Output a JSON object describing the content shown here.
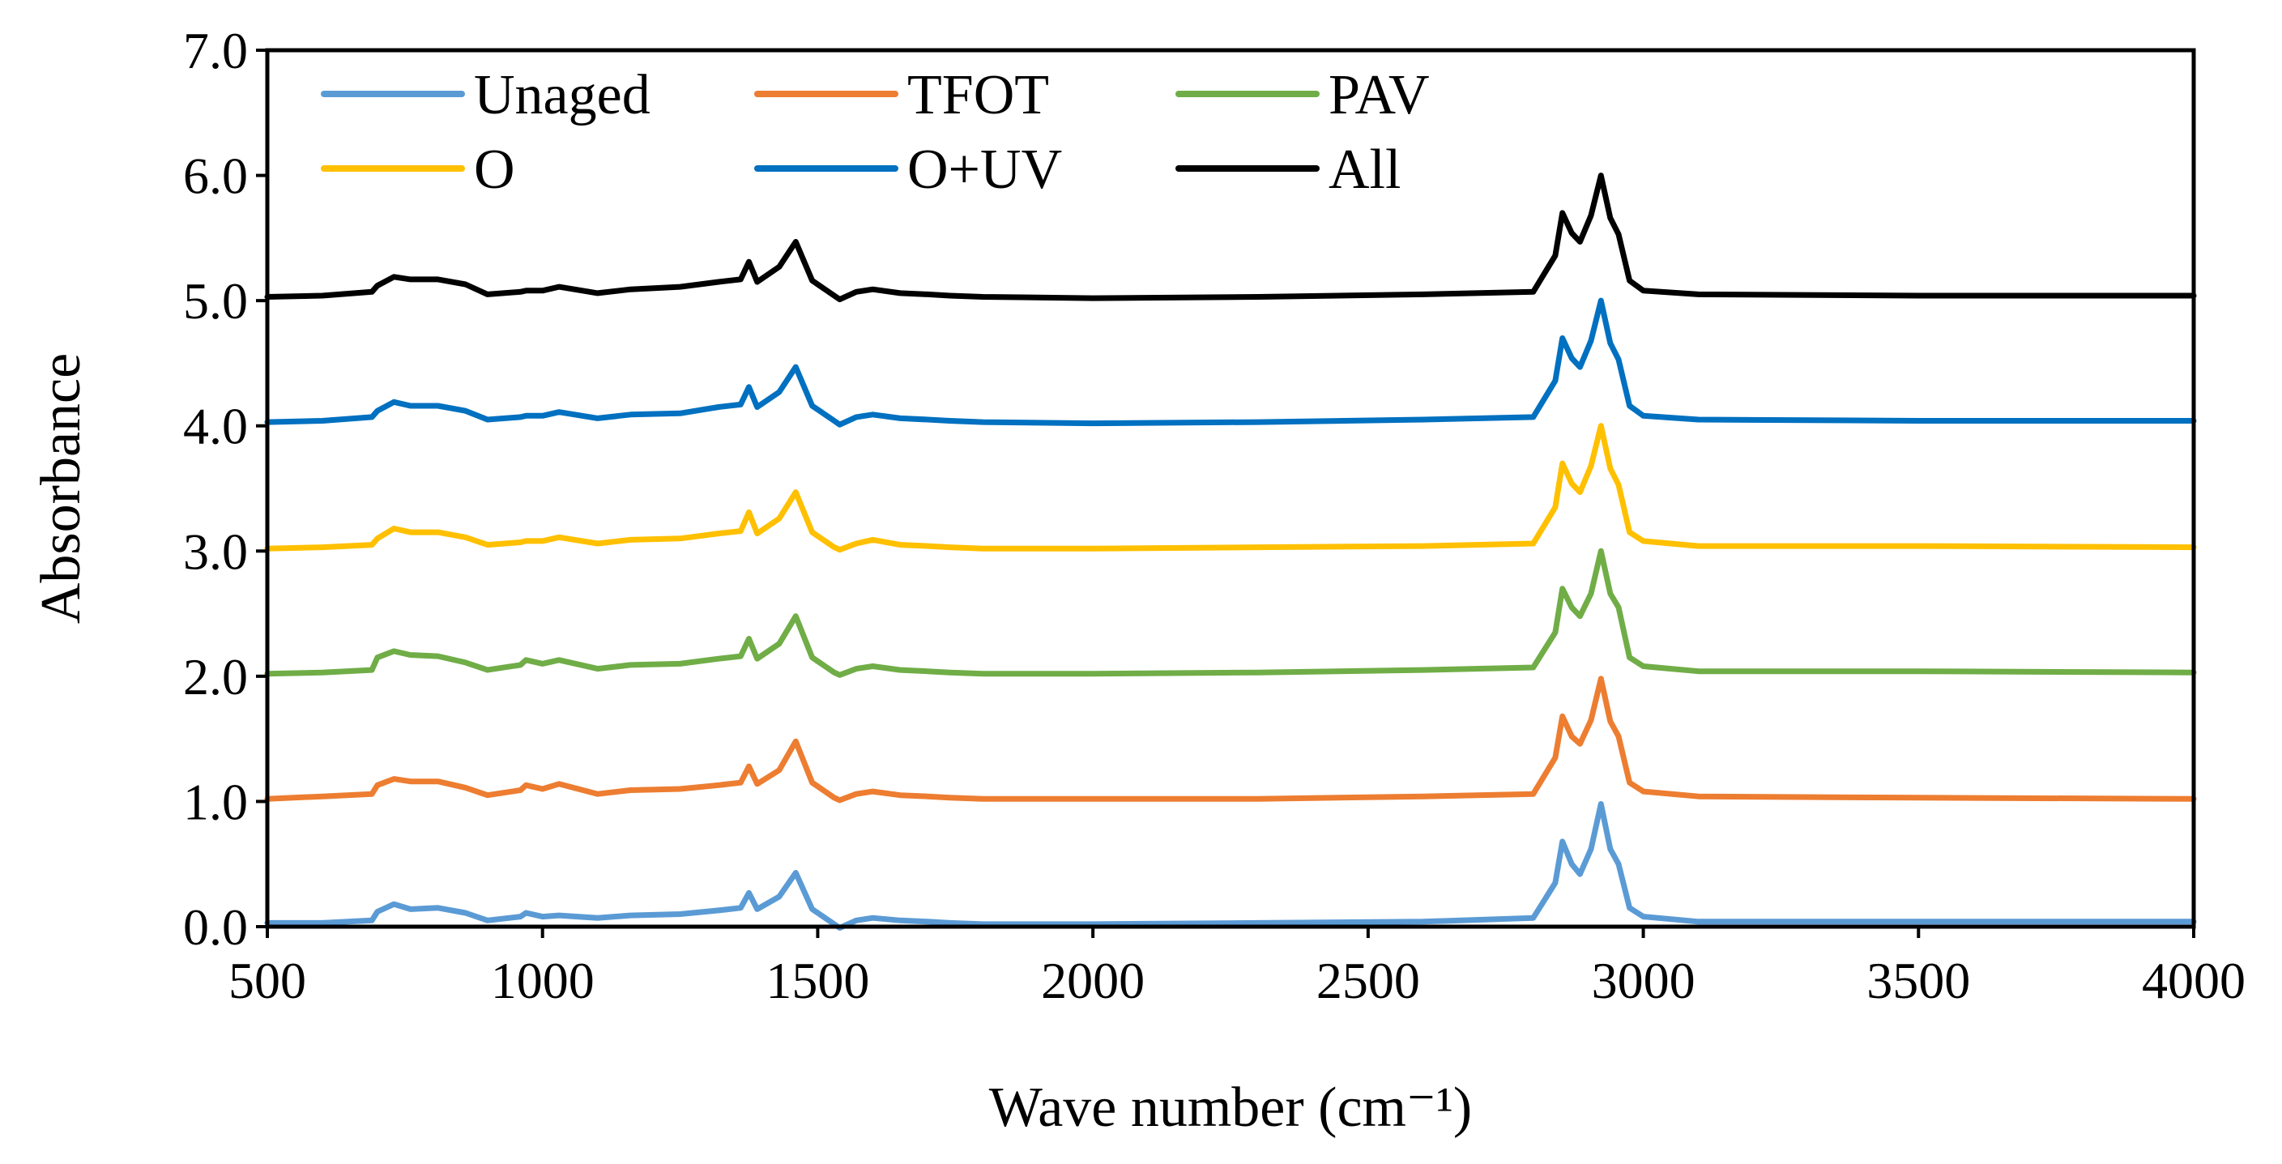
{
  "chart_data": {
    "type": "line",
    "title": "",
    "xlabel": "Wave number (cm⁻¹)",
    "ylabel": "Absorbance",
    "xlim": [
      500,
      4000
    ],
    "ylim": [
      0,
      7
    ],
    "x_ticks": [
      "500",
      "1000",
      "1500",
      "2000",
      "2500",
      "3000",
      "3500",
      "4000"
    ],
    "y_ticks": [
      "0.0",
      "1.0",
      "2.0",
      "3.0",
      "4.0",
      "5.0",
      "6.0",
      "7.0"
    ],
    "grid": false,
    "legend_position": "top, inside plot, 3 columns",
    "x": [
      500,
      600,
      690,
      700,
      730,
      760,
      810,
      860,
      900,
      960,
      970,
      1000,
      1030,
      1100,
      1160,
      1250,
      1320,
      1360,
      1375,
      1390,
      1430,
      1460,
      1490,
      1530,
      1540,
      1570,
      1600,
      1650,
      1700,
      1740,
      1800,
      2000,
      2300,
      2600,
      2800,
      2840,
      2853,
      2870,
      2885,
      2905,
      2923,
      2940,
      2955,
      2975,
      3000,
      3100,
      3500,
      4000
    ],
    "series": [
      {
        "name": "Unaged",
        "color": "#5b9bd5",
        "values": [
          0.03,
          0.03,
          0.05,
          0.12,
          0.18,
          0.14,
          0.15,
          0.11,
          0.05,
          0.08,
          0.11,
          0.08,
          0.09,
          0.07,
          0.09,
          0.1,
          0.13,
          0.15,
          0.27,
          0.14,
          0.24,
          0.43,
          0.14,
          0.02,
          -0.01,
          0.05,
          0.07,
          0.05,
          0.04,
          0.03,
          0.02,
          0.02,
          0.03,
          0.04,
          0.07,
          0.35,
          0.68,
          0.5,
          0.42,
          0.62,
          0.98,
          0.62,
          0.5,
          0.15,
          0.08,
          0.04,
          0.04,
          0.04
        ]
      },
      {
        "name": "TFOT",
        "color": "#ed7d31",
        "values": [
          1.02,
          1.04,
          1.06,
          1.13,
          1.18,
          1.16,
          1.16,
          1.11,
          1.05,
          1.09,
          1.13,
          1.1,
          1.14,
          1.06,
          1.09,
          1.1,
          1.13,
          1.15,
          1.28,
          1.14,
          1.25,
          1.48,
          1.15,
          1.03,
          1.01,
          1.06,
          1.08,
          1.05,
          1.04,
          1.03,
          1.02,
          1.02,
          1.02,
          1.04,
          1.06,
          1.35,
          1.68,
          1.52,
          1.46,
          1.65,
          1.98,
          1.64,
          1.52,
          1.15,
          1.08,
          1.04,
          1.03,
          1.02
        ]
      },
      {
        "name": "PAV",
        "color": "#70ad47",
        "values": [
          2.02,
          2.03,
          2.05,
          2.15,
          2.2,
          2.17,
          2.16,
          2.11,
          2.05,
          2.09,
          2.13,
          2.1,
          2.13,
          2.06,
          2.09,
          2.1,
          2.14,
          2.16,
          2.3,
          2.14,
          2.26,
          2.48,
          2.15,
          2.03,
          2.01,
          2.06,
          2.08,
          2.05,
          2.04,
          2.03,
          2.02,
          2.02,
          2.03,
          2.05,
          2.07,
          2.35,
          2.7,
          2.55,
          2.48,
          2.66,
          3.0,
          2.66,
          2.55,
          2.15,
          2.08,
          2.04,
          2.04,
          2.03
        ]
      },
      {
        "name": "O",
        "color": "#ffc000",
        "values": [
          3.02,
          3.03,
          3.05,
          3.1,
          3.18,
          3.15,
          3.15,
          3.11,
          3.05,
          3.07,
          3.08,
          3.08,
          3.11,
          3.06,
          3.09,
          3.1,
          3.14,
          3.16,
          3.31,
          3.14,
          3.26,
          3.47,
          3.15,
          3.03,
          3.01,
          3.06,
          3.09,
          3.05,
          3.04,
          3.03,
          3.02,
          3.02,
          3.03,
          3.04,
          3.06,
          3.35,
          3.7,
          3.54,
          3.47,
          3.68,
          4.0,
          3.66,
          3.53,
          3.15,
          3.08,
          3.04,
          3.04,
          3.03
        ]
      },
      {
        "name": "O+UV",
        "color": "#0070c0",
        "values": [
          4.03,
          4.04,
          4.07,
          4.12,
          4.19,
          4.16,
          4.16,
          4.12,
          4.05,
          4.07,
          4.08,
          4.08,
          4.11,
          4.06,
          4.09,
          4.1,
          4.15,
          4.17,
          4.31,
          4.15,
          4.27,
          4.47,
          4.16,
          4.04,
          4.01,
          4.07,
          4.09,
          4.06,
          4.05,
          4.04,
          4.03,
          4.02,
          4.03,
          4.05,
          4.07,
          4.36,
          4.7,
          4.54,
          4.47,
          4.68,
          5.0,
          4.66,
          4.53,
          4.16,
          4.08,
          4.05,
          4.04,
          4.04
        ]
      },
      {
        "name": "All",
        "color": "#000000",
        "values": [
          5.03,
          5.04,
          5.07,
          5.12,
          5.19,
          5.17,
          5.17,
          5.13,
          5.05,
          5.07,
          5.08,
          5.08,
          5.11,
          5.06,
          5.09,
          5.11,
          5.15,
          5.17,
          5.31,
          5.15,
          5.27,
          5.47,
          5.16,
          5.04,
          5.01,
          5.07,
          5.09,
          5.06,
          5.05,
          5.04,
          5.03,
          5.02,
          5.03,
          5.05,
          5.07,
          5.36,
          5.7,
          5.54,
          5.47,
          5.68,
          6.0,
          5.66,
          5.53,
          5.16,
          5.08,
          5.05,
          5.04,
          5.04
        ]
      }
    ]
  }
}
